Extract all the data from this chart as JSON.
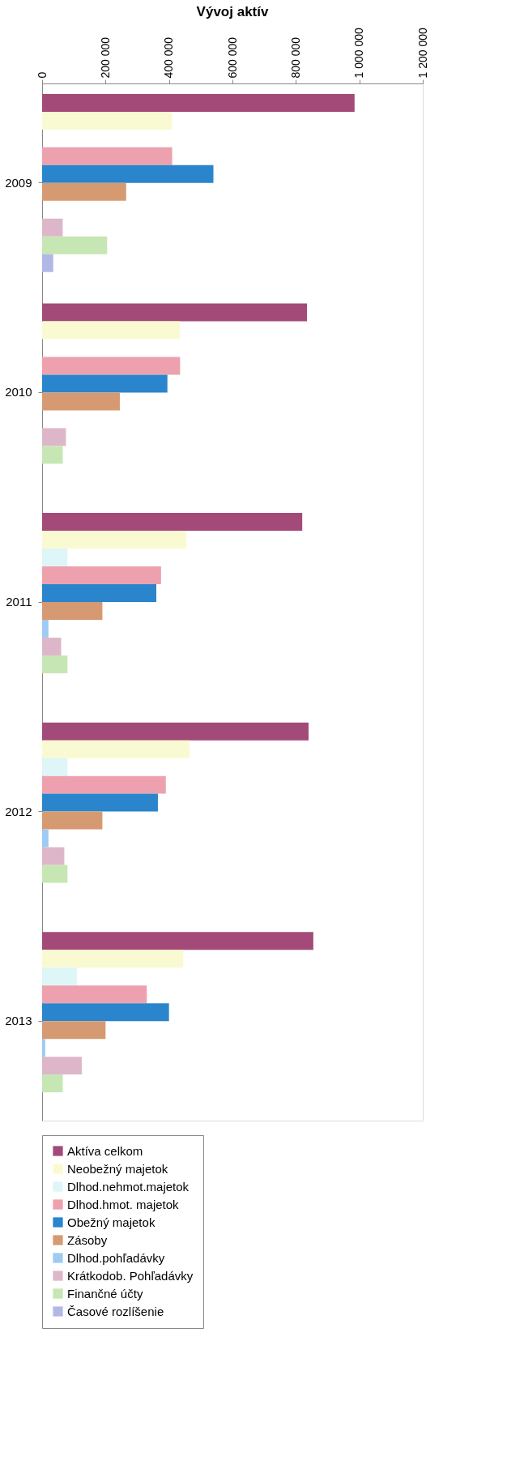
{
  "chart_data": {
    "type": "bar",
    "orientation": "horizontal",
    "title": "Vývoj aktív",
    "categories": [
      "2009",
      "2010",
      "2011",
      "2012",
      "2013"
    ],
    "xlim": [
      0,
      1200000
    ],
    "xticks": [
      {
        "value": 0,
        "label": "0"
      },
      {
        "value": 200000,
        "label": "200 000"
      },
      {
        "value": 400000,
        "label": "400 000"
      },
      {
        "value": 600000,
        "label": "600 000"
      },
      {
        "value": 800000,
        "label": "800 000"
      },
      {
        "value": 1000000,
        "label": "1 000 000"
      },
      {
        "value": 1200000,
        "label": "1 200 000"
      }
    ],
    "grid": false,
    "legend": "bottom",
    "series": [
      {
        "name": "Aktíva celkom",
        "color": "#a34a78",
        "values": [
          985000,
          835000,
          820000,
          840000,
          855000
        ]
      },
      {
        "name": "Neobežný majetok",
        "color": "#fafad2",
        "values": [
          410000,
          435000,
          455000,
          465000,
          445000
        ]
      },
      {
        "name": "Dlhod.nehmot.majetok",
        "color": "#dff6f8",
        "values": [
          0,
          0,
          80000,
          80000,
          110000
        ]
      },
      {
        "name": "Dlhod.hmot. majetok",
        "color": "#eda1ae",
        "values": [
          410000,
          435000,
          375000,
          390000,
          330000
        ]
      },
      {
        "name": "Obežný majetok",
        "color": "#2a85cc",
        "values": [
          540000,
          395000,
          360000,
          365000,
          400000
        ]
      },
      {
        "name": "Zásoby",
        "color": "#d69a72",
        "values": [
          265000,
          245000,
          190000,
          190000,
          200000
        ]
      },
      {
        "name": "Dlhod.pohľadávky",
        "color": "#9ecbf2",
        "values": [
          0,
          0,
          20000,
          20000,
          10000
        ]
      },
      {
        "name": "Krátkodob. Pohľadávky",
        "color": "#ddb7c9",
        "values": [
          65000,
          75000,
          60000,
          70000,
          125000
        ]
      },
      {
        "name": "Finančné účty",
        "color": "#c6e6b4",
        "values": [
          205000,
          65000,
          80000,
          80000,
          65000
        ]
      },
      {
        "name": "Časové rozlíšenie",
        "color": "#b2b8e6",
        "values": [
          35000,
          0,
          0,
          0,
          0
        ]
      }
    ]
  }
}
